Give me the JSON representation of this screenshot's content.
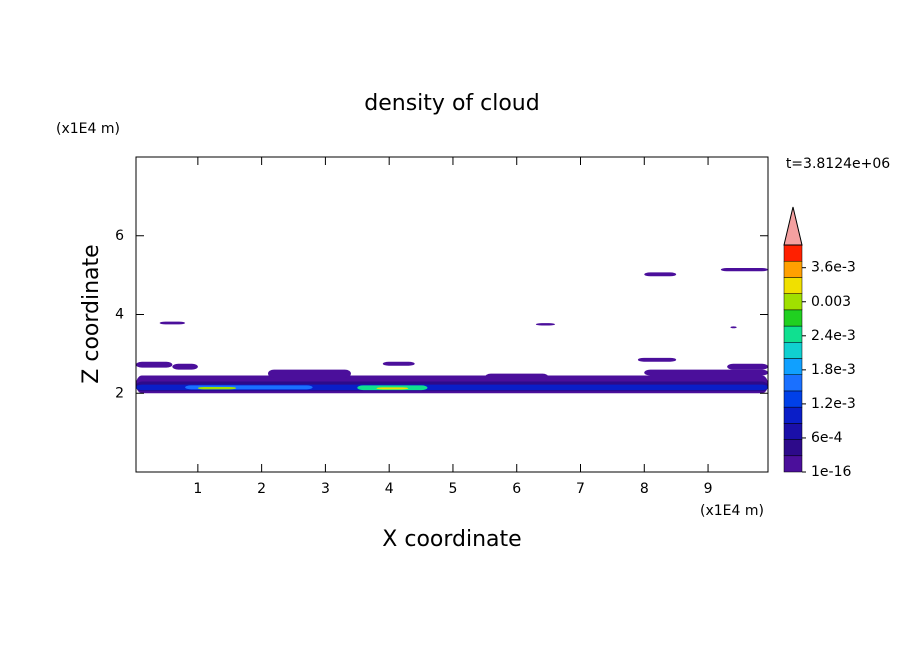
{
  "chart_data": {
    "type": "contour",
    "title": "density of cloud",
    "x_label": "X coordinate",
    "y_label": "Z coordinate",
    "x_unit": "(x1E4 m)",
    "y_unit": "(x1E4 m)",
    "time_label": "t=3.8124e+06",
    "xlim": [
      0.03,
      9.94
    ],
    "ylim": [
      0,
      8
    ],
    "xticks": [
      1,
      2,
      3,
      4,
      5,
      6,
      7,
      8,
      9
    ],
    "yticks": [
      2,
      4,
      6
    ],
    "colorbar": {
      "lim": [
        1e-16,
        0.004
      ],
      "ticks": [
        1e-16,
        {
          "value": 0.0006,
          "label": "6e-4"
        },
        {
          "value": 0.0012,
          "label": "1.2e-3"
        },
        {
          "value": 0.0018,
          "label": "1.8e-3"
        },
        {
          "value": 0.0024,
          "label": "2.4e-3"
        },
        0.003,
        {
          "value": 0.0036,
          "label": "3.6e-3"
        }
      ],
      "colors": [
        "#4b0f9b",
        "#2d0a8a",
        "#1a0fa8",
        "#0a1ec8",
        "#0040e8",
        "#1a70ff",
        "#10a0ff",
        "#10d0d0",
        "#10e090",
        "#20d020",
        "#a0e000",
        "#f0e000",
        "#ffa000",
        "#ff2000"
      ],
      "extend_color": "#f4a0a0"
    },
    "regions": [
      {
        "x": [
          0.03,
          9.94
        ],
        "z": [
          2.0,
          2.45
        ],
        "value": 0.0001
      },
      {
        "x": [
          0.03,
          9.94
        ],
        "z": [
          2.05,
          2.3
        ],
        "value": 0.0005
      },
      {
        "x": [
          0.03,
          9.94
        ],
        "z": [
          2.08,
          2.22
        ],
        "value": 0.001
      },
      {
        "x": [
          0.8,
          2.8
        ],
        "z": [
          2.1,
          2.2
        ],
        "value": 0.0017
      },
      {
        "x": [
          3.5,
          4.6
        ],
        "z": [
          2.08,
          2.2
        ],
        "value": 0.0025
      },
      {
        "x": [
          1.0,
          1.6
        ],
        "z": [
          2.1,
          2.16
        ],
        "value": 0.003
      },
      {
        "x": [
          3.8,
          4.3
        ],
        "z": [
          2.1,
          2.15
        ],
        "value": 0.0033
      },
      {
        "x": [
          0.03,
          0.6
        ],
        "z": [
          2.65,
          2.8
        ],
        "value": 0.0001
      },
      {
        "x": [
          0.6,
          1.0
        ],
        "z": [
          2.6,
          2.75
        ],
        "value": 0.0001
      },
      {
        "x": [
          2.1,
          3.4
        ],
        "z": [
          2.4,
          2.6
        ],
        "value": 0.0001
      },
      {
        "x": [
          3.9,
          4.4
        ],
        "z": [
          2.7,
          2.8
        ],
        "value": 0.0001
      },
      {
        "x": [
          5.5,
          6.5
        ],
        "z": [
          2.3,
          2.5
        ],
        "value": 0.0001
      },
      {
        "x": [
          7.9,
          8.5
        ],
        "z": [
          2.8,
          2.9
        ],
        "value": 0.0001
      },
      {
        "x": [
          8.0,
          9.94
        ],
        "z": [
          2.45,
          2.6
        ],
        "value": 0.0001
      },
      {
        "x": [
          9.3,
          9.94
        ],
        "z": [
          2.6,
          2.75
        ],
        "value": 0.0001
      },
      {
        "x": [
          0.4,
          0.8
        ],
        "z": [
          3.75,
          3.82
        ],
        "value": 0.0001
      },
      {
        "x": [
          6.3,
          6.6
        ],
        "z": [
          3.72,
          3.78
        ],
        "value": 0.0001
      },
      {
        "x": [
          8.0,
          8.5
        ],
        "z": [
          4.97,
          5.07
        ],
        "value": 0.0001
      },
      {
        "x": [
          9.2,
          9.94
        ],
        "z": [
          5.1,
          5.18
        ],
        "value": 0.0001
      },
      {
        "x": [
          9.35,
          9.45
        ],
        "z": [
          3.65,
          3.7
        ],
        "value": 0.0001
      }
    ]
  }
}
